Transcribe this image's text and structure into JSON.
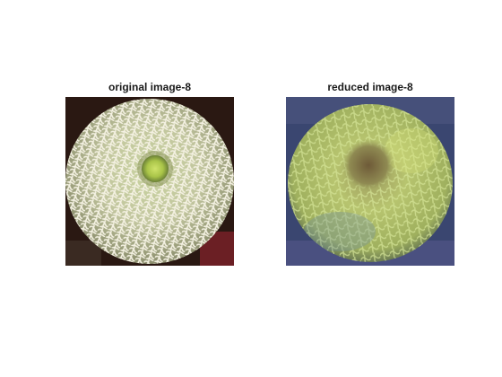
{
  "figure": {
    "panels": [
      {
        "title": "original image-8"
      },
      {
        "title": "reduced image-8"
      }
    ]
  }
}
